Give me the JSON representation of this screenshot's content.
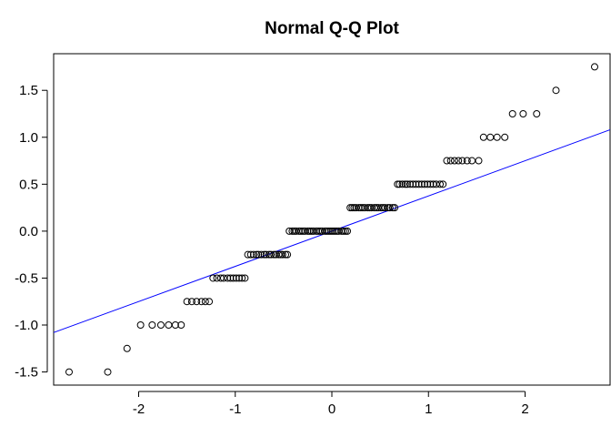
{
  "chart_data": {
    "type": "scatter",
    "title": "Normal Q-Q Plot",
    "xlabel": "",
    "ylabel": "",
    "xlim": [
      -2.88,
      2.88
    ],
    "ylim": [
      -1.64,
      1.89
    ],
    "x_ticks": [
      -2,
      -1,
      0,
      1,
      2
    ],
    "y_ticks": [
      -1.5,
      -1.0,
      -0.5,
      0.0,
      0.5,
      1.0,
      1.5
    ],
    "x_tick_labels": [
      "-2",
      "-1",
      "0",
      "1",
      "2"
    ],
    "y_tick_labels": [
      "-1.5",
      "-1.0",
      "-0.5",
      "0.0",
      "0.5",
      "1.0",
      "1.5"
    ],
    "grid": false,
    "point_color": "#000000",
    "reference_line_color": "#0000ff",
    "reference_line": {
      "intercept": 0.0,
      "slope": 0.375
    },
    "groups": [
      {
        "y": -1.5,
        "x": [
          -2.72,
          -2.32
        ]
      },
      {
        "y": -1.25,
        "x": [
          -2.12
        ]
      },
      {
        "y": -1.0,
        "x": [
          -1.98,
          -1.86,
          -1.77,
          -1.69,
          -1.62,
          -1.56
        ]
      },
      {
        "y": -0.75,
        "x": [
          -1.5,
          -1.45,
          -1.4,
          -1.35,
          -1.31,
          -1.27
        ]
      },
      {
        "y": -0.5,
        "x": [
          -1.23,
          -1.19,
          -1.15,
          -1.12,
          -1.08,
          -1.05,
          -1.02,
          -0.99,
          -0.96,
          -0.93,
          -0.9
        ]
      },
      {
        "y": -0.25,
        "x": [
          -0.87,
          -0.84,
          -0.81,
          -0.78,
          -0.76,
          -0.73,
          -0.7,
          -0.68,
          -0.65,
          -0.63,
          -0.6,
          -0.58,
          -0.55,
          -0.53,
          -0.51,
          -0.48,
          -0.46
        ]
      },
      {
        "y": 0.0,
        "x": [
          -0.44,
          -0.41,
          -0.39,
          -0.37,
          -0.34,
          -0.32,
          -0.3,
          -0.28,
          -0.25,
          -0.23,
          -0.21,
          -0.19,
          -0.16,
          -0.14,
          -0.12,
          -0.1,
          -0.07,
          -0.05,
          -0.03,
          -0.01,
          0.01,
          0.03,
          0.05,
          0.07,
          0.1,
          0.12,
          0.14,
          0.16
        ]
      },
      {
        "y": 0.25,
        "x": [
          0.19,
          0.21,
          0.23,
          0.25,
          0.28,
          0.3,
          0.32,
          0.34,
          0.37,
          0.39,
          0.41,
          0.44,
          0.46,
          0.48,
          0.51,
          0.53,
          0.55,
          0.58,
          0.6,
          0.63,
          0.65
        ]
      },
      {
        "y": 0.5,
        "x": [
          0.68,
          0.7,
          0.73,
          0.76,
          0.78,
          0.81,
          0.84,
          0.87,
          0.9,
          0.93,
          0.96,
          0.99,
          1.02,
          1.05,
          1.08,
          1.12,
          1.15
        ]
      },
      {
        "y": 0.75,
        "x": [
          1.19,
          1.23,
          1.27,
          1.31,
          1.35,
          1.4,
          1.45,
          1.52
        ]
      },
      {
        "y": 1.0,
        "x": [
          1.57,
          1.64,
          1.71,
          1.79
        ]
      },
      {
        "y": 1.25,
        "x": [
          1.87,
          1.98,
          2.12
        ]
      },
      {
        "y": 1.5,
        "x": [
          2.32
        ]
      },
      {
        "y": 1.75,
        "x": [
          2.72
        ]
      }
    ]
  }
}
